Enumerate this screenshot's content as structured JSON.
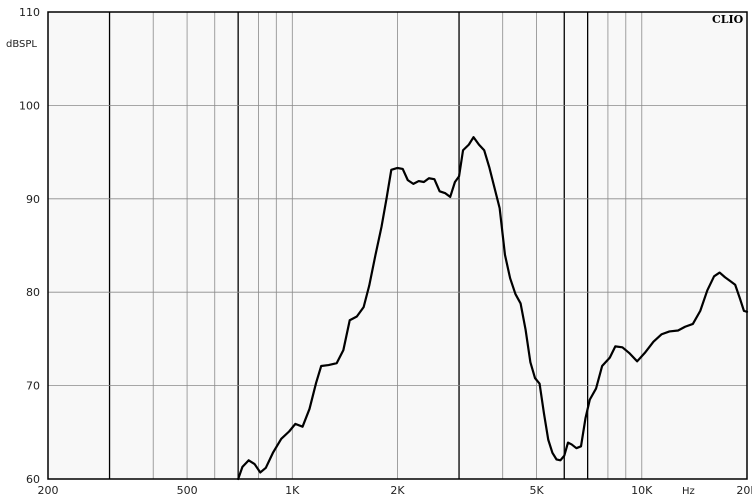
{
  "chart_data": {
    "type": "line",
    "title": "",
    "brand_label": "CLIO",
    "ylabel": "dBSPL",
    "xlabel": "Hz",
    "x_scale": "log",
    "xlim": [
      200,
      20000
    ],
    "ylim": [
      60,
      110
    ],
    "grid": true,
    "y_ticks": [
      {
        "value": 60,
        "label": "60"
      },
      {
        "value": 70,
        "label": "70"
      },
      {
        "value": 80,
        "label": "80"
      },
      {
        "value": 90,
        "label": "90"
      },
      {
        "value": 100,
        "label": "100"
      },
      {
        "value": 110,
        "label": "110"
      }
    ],
    "x_ticks": [
      {
        "value": 200,
        "label": "200"
      },
      {
        "value": 500,
        "label": "500"
      },
      {
        "value": 1000,
        "label": "1K"
      },
      {
        "value": 2000,
        "label": "2K"
      },
      {
        "value": 5000,
        "label": "5K"
      },
      {
        "value": 10000,
        "label": "10K"
      },
      {
        "value": 20000,
        "label": "20K"
      }
    ],
    "major_gridlines_x": [
      300,
      700,
      3000,
      6000,
      7000
    ],
    "minor_gridlines_x": [
      400,
      500,
      600,
      800,
      900,
      1000,
      2000,
      4000,
      5000,
      8000,
      9000,
      10000
    ],
    "series": [
      {
        "color": "#000000",
        "points": [
          [
            700,
            60
          ],
          [
            720,
            61.3
          ],
          [
            750,
            62
          ],
          [
            780,
            61.6
          ],
          [
            810,
            60.7
          ],
          [
            840,
            61.2
          ],
          [
            880,
            62.8
          ],
          [
            930,
            64.3
          ],
          [
            980,
            65.1
          ],
          [
            1020,
            65.9
          ],
          [
            1070,
            65.6
          ],
          [
            1120,
            67.5
          ],
          [
            1170,
            70.3
          ],
          [
            1210,
            72.1
          ],
          [
            1270,
            72.2
          ],
          [
            1340,
            72.4
          ],
          [
            1400,
            73.8
          ],
          [
            1460,
            77
          ],
          [
            1530,
            77.4
          ],
          [
            1600,
            78.4
          ],
          [
            1660,
            80.7
          ],
          [
            1730,
            84
          ],
          [
            1800,
            87
          ],
          [
            1860,
            90
          ],
          [
            1920,
            93.1
          ],
          [
            2000,
            93.3
          ],
          [
            2070,
            93.2
          ],
          [
            2140,
            92
          ],
          [
            2220,
            91.6
          ],
          [
            2300,
            91.9
          ],
          [
            2380,
            91.8
          ],
          [
            2460,
            92.2
          ],
          [
            2550,
            92.1
          ],
          [
            2640,
            90.8
          ],
          [
            2740,
            90.6
          ],
          [
            2830,
            90.2
          ],
          [
            2920,
            91.8
          ],
          [
            3000,
            92.4
          ],
          [
            3080,
            95.2
          ],
          [
            3200,
            95.8
          ],
          [
            3300,
            96.6
          ],
          [
            3420,
            95.8
          ],
          [
            3540,
            95.2
          ],
          [
            3660,
            93.4
          ],
          [
            3800,
            91
          ],
          [
            3920,
            89
          ],
          [
            4060,
            84
          ],
          [
            4200,
            81.5
          ],
          [
            4350,
            79.8
          ],
          [
            4500,
            78.8
          ],
          [
            4650,
            76
          ],
          [
            4800,
            72.5
          ],
          [
            4950,
            70.8
          ],
          [
            5100,
            70.2
          ],
          [
            5250,
            67
          ],
          [
            5400,
            64.2
          ],
          [
            5550,
            62.8
          ],
          [
            5700,
            62.1
          ],
          [
            5850,
            62
          ],
          [
            6000,
            62.5
          ],
          [
            6150,
            63.9
          ],
          [
            6300,
            63.7
          ],
          [
            6500,
            63.3
          ],
          [
            6700,
            63.5
          ],
          [
            6900,
            66.5
          ],
          [
            7100,
            68.5
          ],
          [
            7400,
            69.7
          ],
          [
            7700,
            72.1
          ],
          [
            8100,
            73
          ],
          [
            8400,
            74.2
          ],
          [
            8800,
            74.1
          ],
          [
            9200,
            73.5
          ],
          [
            9700,
            72.6
          ],
          [
            10200,
            73.5
          ],
          [
            10800,
            74.7
          ],
          [
            11400,
            75.5
          ],
          [
            12000,
            75.8
          ],
          [
            12700,
            75.9
          ],
          [
            13300,
            76.3
          ],
          [
            14000,
            76.6
          ],
          [
            14700,
            78
          ],
          [
            15400,
            80.2
          ],
          [
            16100,
            81.7
          ],
          [
            16700,
            82.1
          ],
          [
            17300,
            81.6
          ],
          [
            17900,
            81.2
          ],
          [
            18500,
            80.8
          ],
          [
            19100,
            79.3
          ],
          [
            19600,
            78
          ],
          [
            20000,
            77.9
          ]
        ]
      }
    ]
  }
}
